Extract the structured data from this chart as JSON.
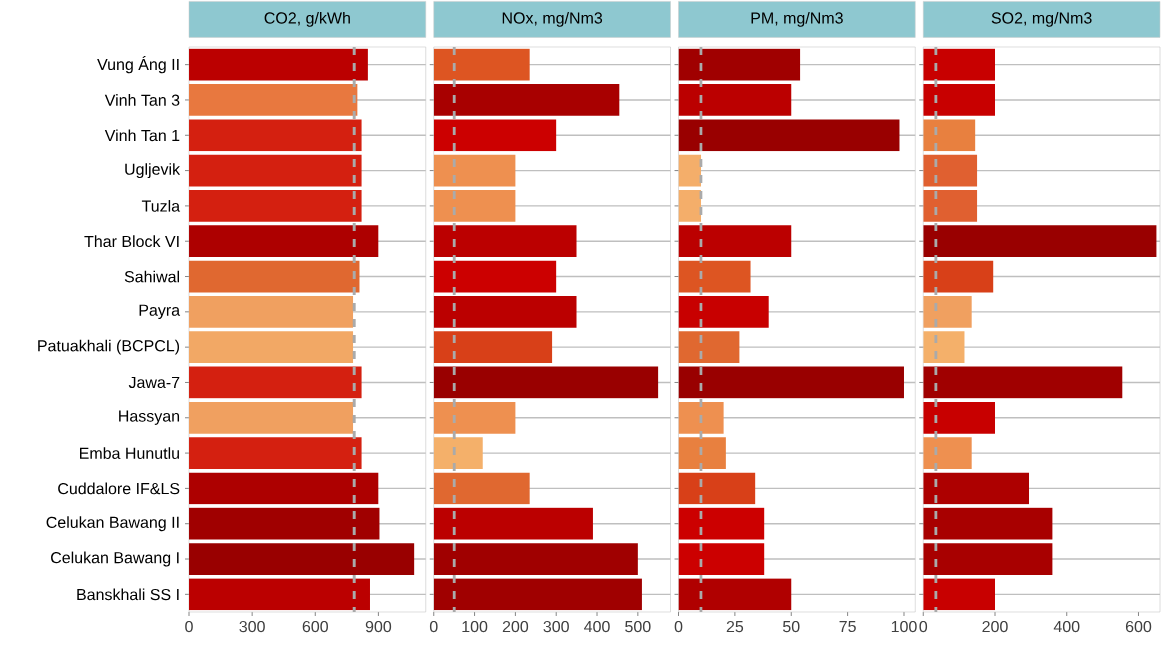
{
  "chart_data": [
    {
      "type": "bar",
      "orientation": "horizontal",
      "title": "CO2, g/kWh",
      "categories": [
        "Vung Áng II",
        "Vinh Tan 3",
        "Vinh Tan 1",
        "Ugljevik",
        "Tuzla",
        "Thar Block VI",
        "Sahiwal",
        "Payra",
        "Patuakhali (BCPCL)",
        "Jawa-7",
        "Hassyan",
        "Emba Hunutlu",
        "Cuddalore IF&LS",
        "Celukan Bawang II",
        "Celukan Bawang I",
        "Banskhali SS I"
      ],
      "values": [
        850,
        800,
        820,
        820,
        820,
        900,
        810,
        780,
        780,
        820,
        780,
        820,
        900,
        905,
        1070,
        860
      ],
      "colors": [
        "#bb0000",
        "#e8783f",
        "#d42010",
        "#d42010",
        "#d42010",
        "#ad0000",
        "#e06830",
        "#f0a060",
        "#f2a865",
        "#d42010",
        "#f0a060",
        "#d42010",
        "#ad0000",
        "#a00000",
        "#990000",
        "#bb0000"
      ],
      "xlim": [
        0,
        1125
      ],
      "xticks": [
        0,
        300,
        600,
        900
      ],
      "grid": "y",
      "ref_lines": [
        {
          "axis": "x",
          "value": 785,
          "color": "#aaaaaa",
          "line_style": "dashed"
        }
      ]
    },
    {
      "type": "bar",
      "orientation": "horizontal",
      "title": "NOx, mg/Nm3",
      "tick_labels": "x",
      "categories": [
        "Vung Áng II",
        "Vinh Tan 3",
        "Vinh Tan 1",
        "Ugljevik",
        "Tuzla",
        "Thar Block VI",
        "Sahiwal",
        "Payra",
        "Patuakhali (BCPCL)",
        "Jawa-7",
        "Hassyan",
        "Emba Hunutlu",
        "Cuddalore IF&LS",
        "Celukan Bawang II",
        "Celukan Bawang I",
        "Banskhali SS I"
      ],
      "values": [
        235,
        455,
        300,
        200,
        200,
        350,
        300,
        350,
        290,
        550,
        200,
        120,
        235,
        390,
        500,
        510
      ],
      "colors": [
        "#dd5522",
        "#a80000",
        "#cc0000",
        "#ee9050",
        "#ee9050",
        "#bb0000",
        "#cc0000",
        "#bb0000",
        "#d84018",
        "#990000",
        "#ee9050",
        "#f4b06a",
        "#e06830",
        "#bb0000",
        "#a00000",
        "#a00000"
      ],
      "xlim": [
        0,
        580
      ],
      "xticks": [
        0,
        100,
        200,
        300,
        400,
        500
      ],
      "grid": "y",
      "ref_lines": [
        {
          "axis": "x",
          "value": 50,
          "color": "#aaaaaa",
          "line_style": "dashed"
        }
      ]
    },
    {
      "type": "bar",
      "orientation": "horizontal",
      "title": "PM, mg/Nm3",
      "tick_labels": "x",
      "categories": [
        "Vung Áng II",
        "Vinh Tan 3",
        "Vinh Tan 1",
        "Ugljevik",
        "Tuzla",
        "Thar Block VI",
        "Sahiwal",
        "Payra",
        "Patuakhali (BCPCL)",
        "Jawa-7",
        "Hassyan",
        "Emba Hunutlu",
        "Cuddalore IF&LS",
        "Celukan Bawang II",
        "Celukan Bawang I",
        "Banskhali SS I"
      ],
      "values": [
        54,
        50,
        98,
        10,
        10,
        50,
        32,
        40,
        27,
        100,
        20,
        21,
        34,
        38,
        38,
        50
      ],
      "colors": [
        "#a00000",
        "#bb0000",
        "#990000",
        "#f4ae6a",
        "#f4ae6a",
        "#bb0000",
        "#dd5522",
        "#c80000",
        "#e06830",
        "#990000",
        "#ee9050",
        "#e8803f",
        "#d84018",
        "#cc0000",
        "#cc0000",
        "#b00000"
      ],
      "xlim": [
        0,
        105
      ],
      "xticks": [
        0,
        25,
        50,
        75,
        100
      ],
      "grid": "y",
      "ref_lines": [
        {
          "axis": "x",
          "value": 10,
          "color": "#aaaaaa",
          "line_style": "dashed"
        }
      ]
    },
    {
      "type": "bar",
      "orientation": "horizontal",
      "title": "SO2, mg/Nm3",
      "tick_labels": "x",
      "categories": [
        "Vung Áng II",
        "Vinh Tan 3",
        "Vinh Tan 1",
        "Ugljevik",
        "Tuzla",
        "Thar Block VI",
        "Sahiwal",
        "Payra",
        "Patuakhali (BCPCL)",
        "Jawa-7",
        "Hassyan",
        "Emba Hunutlu",
        "Cuddalore IF&LS",
        "Celukan Bawang II",
        "Celukan Bawang I",
        "Banskhali SS I"
      ],
      "values": [
        200,
        200,
        145,
        150,
        150,
        650,
        195,
        135,
        115,
        555,
        200,
        135,
        295,
        360,
        360,
        200
      ],
      "colors": [
        "#c80000",
        "#c80000",
        "#e8803f",
        "#e06030",
        "#e06030",
        "#990000",
        "#d84018",
        "#f0a060",
        "#f4b06a",
        "#a00000",
        "#c80000",
        "#ee9050",
        "#ad0000",
        "#a80000",
        "#a80000",
        "#c80000"
      ],
      "xlim": [
        0,
        660
      ],
      "xticks": [
        0,
        200,
        400,
        600
      ],
      "grid": "y",
      "ref_lines": [
        {
          "axis": "x",
          "value": 35,
          "color": "#aaaaaa",
          "line_style": "dashed"
        }
      ]
    }
  ]
}
